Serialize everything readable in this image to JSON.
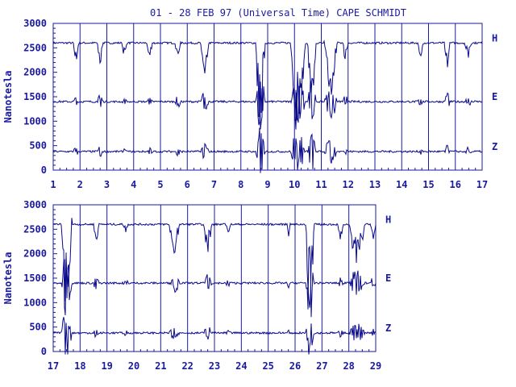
{
  "title": "01 - 28 FEB 97 (Universal Time) CAPE SCHMIDT",
  "colors": {
    "axis": "#1a1aa0",
    "trace": "#0a0a8c",
    "background": "#ffffff"
  },
  "chart_data": [
    {
      "type": "line",
      "panel": "upper",
      "ylabel": "Nanotesla",
      "ylim": [
        0,
        3000
      ],
      "yticks": [
        0,
        500,
        1000,
        1500,
        2000,
        2500,
        3000
      ],
      "xlim": [
        1,
        17
      ],
      "xticks": [
        1,
        2,
        3,
        4,
        5,
        6,
        7,
        8,
        9,
        10,
        11,
        12,
        13,
        14,
        15,
        16,
        17
      ],
      "grid": "vertical lines at each day",
      "series": [
        {
          "name": "H",
          "baseline": 2600
        },
        {
          "name": "E",
          "baseline": 1400
        },
        {
          "name": "Z",
          "baseline": 380
        }
      ]
    },
    {
      "type": "line",
      "panel": "lower",
      "ylabel": "Nanotesla",
      "ylim": [
        0,
        3000
      ],
      "yticks": [
        0,
        500,
        1000,
        1500,
        2000,
        2500,
        3000
      ],
      "xlim": [
        17,
        29
      ],
      "xticks": [
        17,
        18,
        19,
        20,
        21,
        22,
        23,
        24,
        25,
        26,
        27,
        28,
        29
      ],
      "grid": "vertical lines at each day",
      "series": [
        {
          "name": "H",
          "baseline": 2600
        },
        {
          "name": "E",
          "baseline": 1400
        },
        {
          "name": "Z",
          "baseline": 380
        }
      ]
    }
  ]
}
